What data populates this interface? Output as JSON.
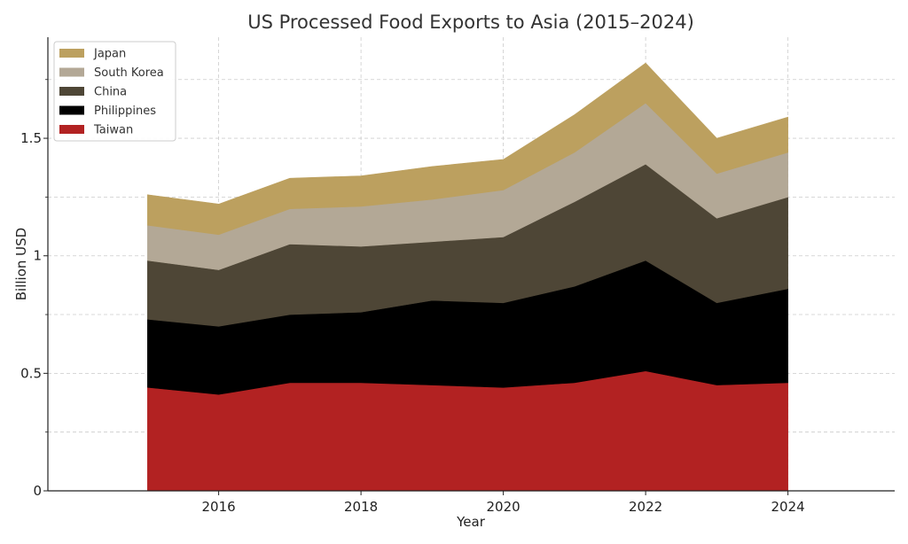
{
  "chart_data": {
    "type": "area",
    "stacked": true,
    "title": "US Processed Food Exports to Asia (2015–2024)",
    "xlabel": "Year",
    "ylabel": "Billion USD",
    "x": [
      2015,
      2016,
      2017,
      2018,
      2019,
      2020,
      2021,
      2022,
      2023,
      2024
    ],
    "xlim": [
      2013.6,
      2025.5
    ],
    "ylim": [
      0,
      1.93
    ],
    "xticks": [
      2016,
      2018,
      2020,
      2022,
      2024
    ],
    "yticks": [
      0,
      0.5,
      1,
      1.5
    ],
    "ytick_labels": [
      "0",
      "0.5",
      "1",
      "1.5"
    ],
    "y_minor_ticks": [
      0.25,
      0.75,
      1.25,
      1.75
    ],
    "grid": true,
    "legend_position": "top-left",
    "series": [
      {
        "name": "Taiwan",
        "color": "#b22222",
        "values": [
          0.44,
          0.41,
          0.46,
          0.46,
          0.45,
          0.44,
          0.46,
          0.51,
          0.45,
          0.46
        ]
      },
      {
        "name": "Philippines",
        "color": "#000000",
        "values": [
          0.29,
          0.29,
          0.29,
          0.3,
          0.36,
          0.36,
          0.41,
          0.47,
          0.35,
          0.4
        ]
      },
      {
        "name": "China",
        "color": "#4e4636",
        "values": [
          0.25,
          0.24,
          0.3,
          0.28,
          0.25,
          0.28,
          0.36,
          0.41,
          0.36,
          0.39
        ]
      },
      {
        "name": "South Korea",
        "color": "#b3a896",
        "values": [
          0.15,
          0.15,
          0.15,
          0.17,
          0.18,
          0.2,
          0.21,
          0.26,
          0.19,
          0.19
        ]
      },
      {
        "name": "Japan",
        "color": "#bca05f",
        "values": [
          0.13,
          0.13,
          0.13,
          0.13,
          0.14,
          0.13,
          0.16,
          0.17,
          0.15,
          0.15
        ]
      }
    ],
    "legend_order": [
      "Japan",
      "South Korea",
      "China",
      "Philippines",
      "Taiwan"
    ]
  }
}
